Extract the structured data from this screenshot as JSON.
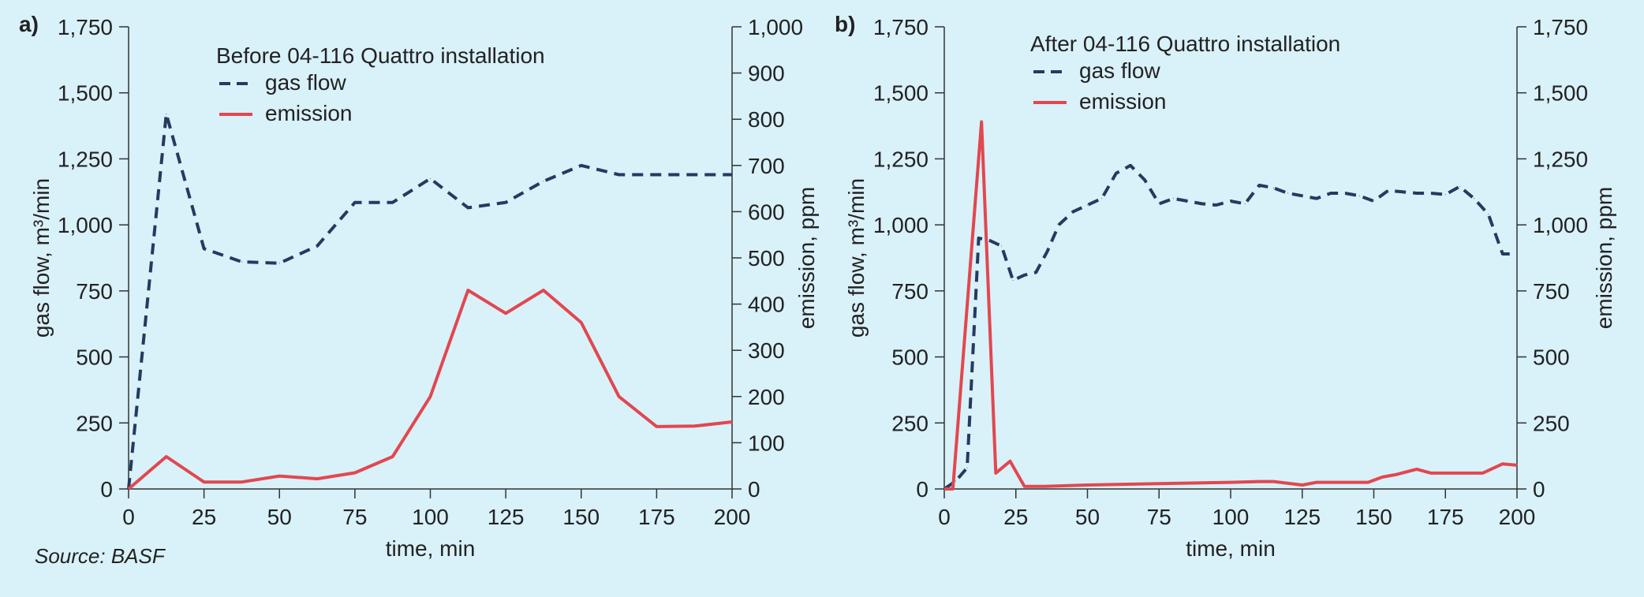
{
  "source": "Source: BASF",
  "colors": {
    "gas_flow": "#243b5e",
    "emission": "#e2474f",
    "background": "#d9f1f9"
  },
  "chart_data": [
    {
      "type": "line",
      "panel_label": "a)",
      "title": "Before 04-116 Quattro installation",
      "xlabel": "time, min",
      "ylabel_left": "gas flow, m³/min",
      "ylabel_right": "emission, ppm",
      "xlim": [
        0,
        200
      ],
      "ylim_left": [
        0,
        1750
      ],
      "ylim_right": [
        0,
        1000
      ],
      "x_ticks": [
        "0",
        "25",
        "50",
        "75",
        "100",
        "125",
        "150",
        "175",
        "200"
      ],
      "y_left_ticks": [
        "0",
        "250",
        "500",
        "750",
        "1,000",
        "1,250",
        "1,500",
        "1,750"
      ],
      "y_right_ticks": [
        "0",
        "100",
        "200",
        "300",
        "400",
        "500",
        "600",
        "700",
        "800",
        "900",
        "1,000"
      ],
      "legend_position": "top-left",
      "series": [
        {
          "name": "gas flow",
          "axis": "left",
          "style": "dashed",
          "x": [
            0,
            12.5,
            25,
            37.5,
            50,
            62.5,
            75,
            87.5,
            100,
            112.5,
            125,
            137.5,
            150,
            162.5,
            175,
            187.5,
            200
          ],
          "y": [
            0,
            1420,
            910,
            860,
            855,
            920,
            1085,
            1085,
            1175,
            1065,
            1085,
            1165,
            1225,
            1190,
            1190,
            1190,
            1190
          ]
        },
        {
          "name": "emission",
          "axis": "right",
          "style": "solid",
          "x": [
            0,
            12.5,
            25,
            37.5,
            50,
            62.5,
            75,
            87.5,
            100,
            112.5,
            125,
            137.5,
            150,
            162.5,
            175,
            187.5,
            200
          ],
          "y": [
            0,
            70,
            15,
            15,
            28,
            22,
            35,
            70,
            200,
            430,
            380,
            430,
            360,
            200,
            135,
            136,
            145
          ]
        }
      ]
    },
    {
      "type": "line",
      "panel_label": "b)",
      "title": "After 04-116 Quattro installation",
      "xlabel": "time, min",
      "ylabel_left": "gas flow, m³/min",
      "ylabel_right": "emission, ppm",
      "xlim": [
        0,
        200
      ],
      "ylim_left": [
        0,
        1750
      ],
      "ylim_right": [
        0,
        1750
      ],
      "x_ticks": [
        "0",
        "25",
        "50",
        "75",
        "100",
        "125",
        "150",
        "175",
        "200"
      ],
      "y_left_ticks": [
        "0",
        "250",
        "500",
        "750",
        "1,000",
        "1,250",
        "1,500",
        "1,750"
      ],
      "y_right_ticks": [
        "0",
        "250",
        "500",
        "750",
        "1,000",
        "1,250",
        "1,500",
        "1,750"
      ],
      "legend_position": "top-left",
      "series": [
        {
          "name": "gas flow",
          "axis": "left",
          "style": "dashed",
          "x": [
            0,
            4,
            8,
            12,
            16,
            20,
            24,
            28,
            32,
            36,
            40,
            45,
            50,
            55,
            60,
            65,
            70,
            75,
            80,
            85,
            90,
            95,
            100,
            105,
            110,
            115,
            120,
            125,
            130,
            135,
            140,
            145,
            150,
            155,
            160,
            165,
            170,
            175,
            180,
            185,
            190,
            195,
            200
          ],
          "y": [
            0,
            30,
            80,
            950,
            940,
            920,
            790,
            810,
            820,
            900,
            1000,
            1050,
            1075,
            1100,
            1195,
            1225,
            1170,
            1080,
            1100,
            1090,
            1080,
            1075,
            1090,
            1080,
            1150,
            1140,
            1120,
            1110,
            1100,
            1120,
            1120,
            1110,
            1090,
            1130,
            1125,
            1120,
            1120,
            1115,
            1145,
            1100,
            1040,
            890,
            890
          ]
        },
        {
          "name": "emission",
          "axis": "right",
          "style": "solid",
          "x": [
            0,
            3,
            13,
            18,
            23,
            28,
            35,
            50,
            75,
            100,
            110,
            115,
            125,
            130,
            140,
            148,
            153,
            158,
            165,
            170,
            180,
            188,
            195,
            200
          ],
          "y": [
            0,
            0,
            1390,
            60,
            105,
            10,
            10,
            15,
            20,
            25,
            28,
            28,
            15,
            25,
            25,
            25,
            45,
            55,
            75,
            60,
            60,
            60,
            95,
            90
          ]
        }
      ]
    }
  ]
}
